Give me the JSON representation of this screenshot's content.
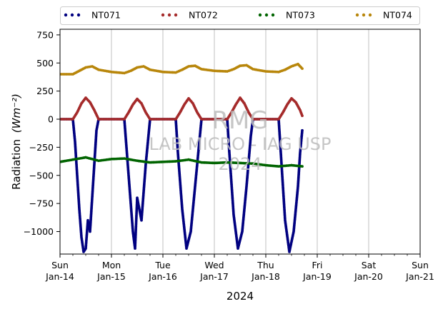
{
  "chart_data": {
    "type": "scatter",
    "xlabel": "2024",
    "ylabel": "Radiation",
    "ylabel_unit": "(Wm⁻²)",
    "ylim": [
      -1200,
      800
    ],
    "xlim": [
      "2024-01-14",
      "2024-01-21"
    ],
    "yticks": [
      750,
      500,
      250,
      0,
      -250,
      -500,
      -750,
      -1000
    ],
    "ytick_labels": [
      "750",
      "500",
      "250",
      "0",
      "−250",
      "−500",
      "−750",
      "−1000"
    ],
    "xticks": [
      {
        "date": "2024-01-14",
        "day": "Sun",
        "label": "Jan-14"
      },
      {
        "date": "2024-01-15",
        "day": "Mon",
        "label": "Jan-15"
      },
      {
        "date": "2024-01-16",
        "day": "Tue",
        "label": "Jan-16"
      },
      {
        "date": "2024-01-17",
        "day": "Wed",
        "label": "Jan-17"
      },
      {
        "date": "2024-01-18",
        "day": "Thu",
        "label": "Jan-18"
      },
      {
        "date": "2024-01-19",
        "day": "Fri",
        "label": "Jan-19"
      },
      {
        "date": "2024-01-20",
        "day": "Sat",
        "label": "Jan-20"
      },
      {
        "date": "2024-01-21",
        "day": "Sun",
        "label": "Jan-21"
      }
    ],
    "grid": "vertical",
    "legend_position": "top",
    "watermark": [
      "RMG",
      "LAB MICRO - IAG USP",
      "2024"
    ],
    "series": [
      {
        "name": "NT071",
        "color": "#000080",
        "points": [
          [
            "2024-01-14 00:00",
            0
          ],
          [
            "2024-01-14 06:00",
            0
          ],
          [
            "2024-01-14 07:00",
            -200
          ],
          [
            "2024-01-14 08:00",
            -500
          ],
          [
            "2024-01-14 09:00",
            -800
          ],
          [
            "2024-01-14 10:00",
            -1050
          ],
          [
            "2024-01-14 11:00",
            -1180
          ],
          [
            "2024-01-14 12:00",
            -1150
          ],
          [
            "2024-01-14 13:00",
            -900
          ],
          [
            "2024-01-14 14:00",
            -1000
          ],
          [
            "2024-01-14 15:00",
            -700
          ],
          [
            "2024-01-14 16:00",
            -400
          ],
          [
            "2024-01-14 17:00",
            -100
          ],
          [
            "2024-01-14 18:00",
            0
          ],
          [
            "2024-01-15 06:00",
            0
          ],
          [
            "2024-01-15 07:00",
            -250
          ],
          [
            "2024-01-15 08:00",
            -500
          ],
          [
            "2024-01-15 10:00",
            -1000
          ],
          [
            "2024-01-15 11:00",
            -1150
          ],
          [
            "2024-01-15 12:00",
            -700
          ],
          [
            "2024-01-15 14:00",
            -900
          ],
          [
            "2024-01-15 16:00",
            -400
          ],
          [
            "2024-01-15 18:00",
            0
          ],
          [
            "2024-01-16 06:00",
            0
          ],
          [
            "2024-01-16 07:00",
            -300
          ],
          [
            "2024-01-16 09:00",
            -800
          ],
          [
            "2024-01-16 11:00",
            -1150
          ],
          [
            "2024-01-16 13:00",
            -1000
          ],
          [
            "2024-01-16 15:00",
            -600
          ],
          [
            "2024-01-16 17:00",
            -200
          ],
          [
            "2024-01-16 18:00",
            0
          ],
          [
            "2024-01-17 06:00",
            0
          ],
          [
            "2024-01-17 07:00",
            -300
          ],
          [
            "2024-01-17 09:00",
            -850
          ],
          [
            "2024-01-17 11:00",
            -1150
          ],
          [
            "2024-01-17 13:00",
            -1000
          ],
          [
            "2024-01-17 15:00",
            -600
          ],
          [
            "2024-01-17 17:00",
            -150
          ],
          [
            "2024-01-17 18:00",
            0
          ],
          [
            "2024-01-18 06:00",
            0
          ],
          [
            "2024-01-18 07:00",
            -300
          ],
          [
            "2024-01-18 09:00",
            -900
          ],
          [
            "2024-01-18 11:00",
            -1180
          ],
          [
            "2024-01-18 13:00",
            -1000
          ],
          [
            "2024-01-18 15:00",
            -600
          ],
          [
            "2024-01-18 16:00",
            -300
          ],
          [
            "2024-01-18 17:00",
            -100
          ]
        ]
      },
      {
        "name": "NT072",
        "color": "#a52a2a",
        "points": [
          [
            "2024-01-14 00:00",
            0
          ],
          [
            "2024-01-14 06:00",
            0
          ],
          [
            "2024-01-14 08:00",
            60
          ],
          [
            "2024-01-14 10:00",
            140
          ],
          [
            "2024-01-14 12:00",
            190
          ],
          [
            "2024-01-14 14:00",
            150
          ],
          [
            "2024-01-14 16:00",
            80
          ],
          [
            "2024-01-14 18:00",
            0
          ],
          [
            "2024-01-15 06:00",
            0
          ],
          [
            "2024-01-15 08:00",
            60
          ],
          [
            "2024-01-15 10:00",
            130
          ],
          [
            "2024-01-15 12:00",
            180
          ],
          [
            "2024-01-15 14:00",
            140
          ],
          [
            "2024-01-15 16:00",
            60
          ],
          [
            "2024-01-15 18:00",
            0
          ],
          [
            "2024-01-16 06:00",
            0
          ],
          [
            "2024-01-16 08:00",
            60
          ],
          [
            "2024-01-16 10:00",
            130
          ],
          [
            "2024-01-16 12:00",
            185
          ],
          [
            "2024-01-16 14:00",
            140
          ],
          [
            "2024-01-16 16:00",
            60
          ],
          [
            "2024-01-16 18:00",
            0
          ],
          [
            "2024-01-17 06:00",
            0
          ],
          [
            "2024-01-17 08:00",
            60
          ],
          [
            "2024-01-17 10:00",
            130
          ],
          [
            "2024-01-17 12:00",
            190
          ],
          [
            "2024-01-17 14:00",
            140
          ],
          [
            "2024-01-17 16:00",
            60
          ],
          [
            "2024-01-17 18:00",
            0
          ],
          [
            "2024-01-18 06:00",
            0
          ],
          [
            "2024-01-18 08:00",
            60
          ],
          [
            "2024-01-18 10:00",
            130
          ],
          [
            "2024-01-18 12:00",
            185
          ],
          [
            "2024-01-18 14:00",
            150
          ],
          [
            "2024-01-18 16:00",
            80
          ],
          [
            "2024-01-18 17:00",
            30
          ]
        ]
      },
      {
        "name": "NT073",
        "color": "#006400",
        "points": [
          [
            "2024-01-14 00:00",
            -380
          ],
          [
            "2024-01-14 06:00",
            -360
          ],
          [
            "2024-01-14 12:00",
            -340
          ],
          [
            "2024-01-14 18:00",
            -370
          ],
          [
            "2024-01-15 00:00",
            -355
          ],
          [
            "2024-01-15 06:00",
            -350
          ],
          [
            "2024-01-15 12:00",
            -370
          ],
          [
            "2024-01-15 18:00",
            -385
          ],
          [
            "2024-01-16 00:00",
            -380
          ],
          [
            "2024-01-16 06:00",
            -375
          ],
          [
            "2024-01-16 12:00",
            -360
          ],
          [
            "2024-01-16 18:00",
            -385
          ],
          [
            "2024-01-17 00:00",
            -390
          ],
          [
            "2024-01-17 06:00",
            -385
          ],
          [
            "2024-01-17 12:00",
            -390
          ],
          [
            "2024-01-17 18:00",
            -395
          ],
          [
            "2024-01-18 00:00",
            -410
          ],
          [
            "2024-01-18 06:00",
            -420
          ],
          [
            "2024-01-18 12:00",
            -410
          ],
          [
            "2024-01-18 17:00",
            -420
          ]
        ]
      },
      {
        "name": "NT074",
        "color": "#b8860b",
        "points": [
          [
            "2024-01-14 00:00",
            400
          ],
          [
            "2024-01-14 06:00",
            400
          ],
          [
            "2024-01-14 09:00",
            430
          ],
          [
            "2024-01-14 12:00",
            460
          ],
          [
            "2024-01-14 15:00",
            470
          ],
          [
            "2024-01-14 18:00",
            440
          ],
          [
            "2024-01-15 00:00",
            420
          ],
          [
            "2024-01-15 06:00",
            410
          ],
          [
            "2024-01-15 09:00",
            430
          ],
          [
            "2024-01-15 12:00",
            460
          ],
          [
            "2024-01-15 15:00",
            470
          ],
          [
            "2024-01-15 18:00",
            440
          ],
          [
            "2024-01-16 00:00",
            420
          ],
          [
            "2024-01-16 06:00",
            415
          ],
          [
            "2024-01-16 09:00",
            440
          ],
          [
            "2024-01-16 12:00",
            470
          ],
          [
            "2024-01-16 15:00",
            475
          ],
          [
            "2024-01-16 18:00",
            445
          ],
          [
            "2024-01-17 00:00",
            430
          ],
          [
            "2024-01-17 06:00",
            425
          ],
          [
            "2024-01-17 09:00",
            445
          ],
          [
            "2024-01-17 12:00",
            475
          ],
          [
            "2024-01-17 15:00",
            480
          ],
          [
            "2024-01-17 18:00",
            445
          ],
          [
            "2024-01-18 00:00",
            425
          ],
          [
            "2024-01-18 06:00",
            420
          ],
          [
            "2024-01-18 09:00",
            440
          ],
          [
            "2024-01-18 12:00",
            470
          ],
          [
            "2024-01-18 15:00",
            490
          ],
          [
            "2024-01-18 17:00",
            450
          ]
        ]
      }
    ]
  }
}
